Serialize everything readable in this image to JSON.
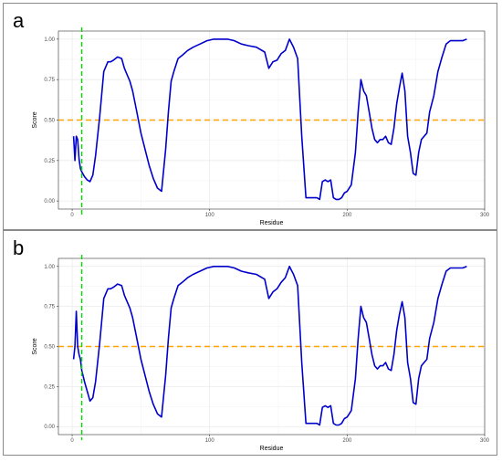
{
  "colors": {
    "series": "#0000cc",
    "threshold": "#ffa500",
    "marker": "#00dd00",
    "grid": "#ebebeb",
    "panel_border": "#7f7f7f"
  },
  "chart_data": [
    {
      "panel_label": "a",
      "type": "line",
      "xlabel": "Residue",
      "ylabel": "Score",
      "xlim": [
        -10,
        300
      ],
      "ylim": [
        -0.05,
        1.05
      ],
      "x_ticks": [
        0,
        100,
        200,
        300
      ],
      "y_ticks": [
        0.0,
        0.25,
        0.5,
        0.75,
        1.0
      ],
      "x_tick_labels": [
        "0",
        "100",
        "200",
        "300"
      ],
      "y_tick_labels": [
        "0.00",
        "0.25",
        "0.50",
        "0.75",
        "1.00"
      ],
      "grid": true,
      "hline": {
        "y": 0.5,
        "style": "dashed",
        "color": "orange"
      },
      "vline": {
        "x": 7,
        "style": "dashed",
        "color": "green"
      },
      "series": [
        {
          "x": [
            1,
            2,
            3,
            4,
            5,
            6,
            7,
            9,
            11,
            13,
            15,
            17,
            20,
            23,
            26,
            28,
            30,
            33,
            36,
            38,
            40,
            42,
            44,
            47,
            50,
            53,
            56,
            59,
            62,
            65,
            68,
            70,
            72,
            74,
            77,
            80,
            84,
            88,
            93,
            98,
            103,
            108,
            113,
            118,
            123,
            128,
            134,
            140,
            143,
            146,
            149,
            152,
            155,
            158,
            161,
            164,
            167,
            170,
            172,
            174,
            176,
            178,
            180,
            182,
            184,
            186,
            188,
            190,
            192,
            194,
            196,
            198,
            200,
            203,
            206,
            208,
            210,
            212,
            214,
            216,
            218,
            220,
            222,
            224,
            226,
            228,
            230,
            232,
            234,
            236,
            238,
            240,
            242,
            244,
            246,
            248,
            250,
            252,
            254,
            256,
            258,
            260,
            263,
            266,
            269,
            272,
            275,
            278,
            281,
            284,
            287
          ],
          "y": [
            0.4,
            0.25,
            0.4,
            0.38,
            0.26,
            0.2,
            0.18,
            0.15,
            0.13,
            0.12,
            0.16,
            0.28,
            0.52,
            0.8,
            0.86,
            0.86,
            0.87,
            0.89,
            0.88,
            0.82,
            0.78,
            0.74,
            0.68,
            0.55,
            0.42,
            0.32,
            0.22,
            0.14,
            0.08,
            0.06,
            0.32,
            0.55,
            0.74,
            0.8,
            0.88,
            0.9,
            0.93,
            0.95,
            0.97,
            0.99,
            1.0,
            1.0,
            1.0,
            0.99,
            0.97,
            0.96,
            0.95,
            0.92,
            0.82,
            0.86,
            0.87,
            0.91,
            0.93,
            1.0,
            0.95,
            0.88,
            0.4,
            0.02,
            0.02,
            0.02,
            0.02,
            0.02,
            0.01,
            0.12,
            0.13,
            0.12,
            0.13,
            0.02,
            0.01,
            0.01,
            0.02,
            0.05,
            0.06,
            0.1,
            0.3,
            0.55,
            0.75,
            0.68,
            0.65,
            0.55,
            0.45,
            0.38,
            0.36,
            0.38,
            0.38,
            0.4,
            0.36,
            0.35,
            0.45,
            0.6,
            0.7,
            0.79,
            0.68,
            0.4,
            0.3,
            0.17,
            0.16,
            0.3,
            0.38,
            0.4,
            0.42,
            0.55,
            0.65,
            0.8,
            0.89,
            0.97,
            0.99,
            0.99,
            0.99,
            0.99,
            1.0
          ]
        }
      ]
    },
    {
      "panel_label": "b",
      "type": "line",
      "xlabel": "Residue",
      "ylabel": "Score",
      "xlim": [
        -10,
        300
      ],
      "ylim": [
        -0.05,
        1.05
      ],
      "x_ticks": [
        0,
        100,
        200,
        300
      ],
      "y_ticks": [
        0.0,
        0.25,
        0.5,
        0.75,
        1.0
      ],
      "x_tick_labels": [
        "0",
        "100",
        "200",
        "300"
      ],
      "y_tick_labels": [
        "0.00",
        "0.25",
        "0.50",
        "0.75",
        "1.00"
      ],
      "grid": true,
      "hline": {
        "y": 0.5,
        "style": "dashed",
        "color": "orange"
      },
      "vline": {
        "x": 7,
        "style": "dashed",
        "color": "green"
      },
      "series": [
        {
          "x": [
            1,
            2,
            3,
            4,
            5,
            6,
            7,
            9,
            11,
            13,
            15,
            17,
            20,
            23,
            26,
            28,
            30,
            33,
            36,
            38,
            40,
            42,
            44,
            47,
            50,
            53,
            56,
            59,
            62,
            65,
            68,
            70,
            72,
            74,
            77,
            80,
            84,
            88,
            93,
            98,
            103,
            108,
            113,
            118,
            123,
            128,
            134,
            140,
            143,
            146,
            149,
            152,
            155,
            158,
            161,
            164,
            167,
            170,
            172,
            174,
            176,
            178,
            180,
            182,
            184,
            186,
            188,
            190,
            192,
            194,
            196,
            198,
            200,
            203,
            206,
            208,
            210,
            212,
            214,
            216,
            218,
            220,
            222,
            224,
            226,
            228,
            230,
            232,
            234,
            236,
            238,
            240,
            242,
            244,
            246,
            248,
            250,
            252,
            254,
            256,
            258,
            260,
            263,
            266,
            269,
            272,
            275,
            278,
            281,
            284,
            287
          ],
          "y": [
            0.42,
            0.5,
            0.72,
            0.5,
            0.45,
            0.42,
            0.35,
            0.28,
            0.22,
            0.16,
            0.18,
            0.28,
            0.52,
            0.8,
            0.86,
            0.86,
            0.87,
            0.89,
            0.88,
            0.82,
            0.78,
            0.74,
            0.68,
            0.55,
            0.42,
            0.32,
            0.22,
            0.14,
            0.08,
            0.06,
            0.32,
            0.55,
            0.74,
            0.8,
            0.88,
            0.9,
            0.93,
            0.95,
            0.97,
            0.99,
            1.0,
            1.0,
            1.0,
            0.99,
            0.97,
            0.96,
            0.95,
            0.92,
            0.8,
            0.84,
            0.86,
            0.9,
            0.93,
            1.0,
            0.95,
            0.88,
            0.4,
            0.02,
            0.02,
            0.02,
            0.02,
            0.02,
            0.01,
            0.12,
            0.13,
            0.12,
            0.13,
            0.02,
            0.01,
            0.01,
            0.02,
            0.05,
            0.06,
            0.1,
            0.3,
            0.55,
            0.75,
            0.68,
            0.65,
            0.55,
            0.45,
            0.38,
            0.36,
            0.38,
            0.38,
            0.4,
            0.36,
            0.35,
            0.45,
            0.6,
            0.7,
            0.78,
            0.68,
            0.4,
            0.3,
            0.15,
            0.14,
            0.3,
            0.38,
            0.4,
            0.42,
            0.55,
            0.65,
            0.8,
            0.89,
            0.97,
            0.99,
            0.99,
            0.99,
            0.99,
            1.0
          ]
        }
      ]
    }
  ]
}
